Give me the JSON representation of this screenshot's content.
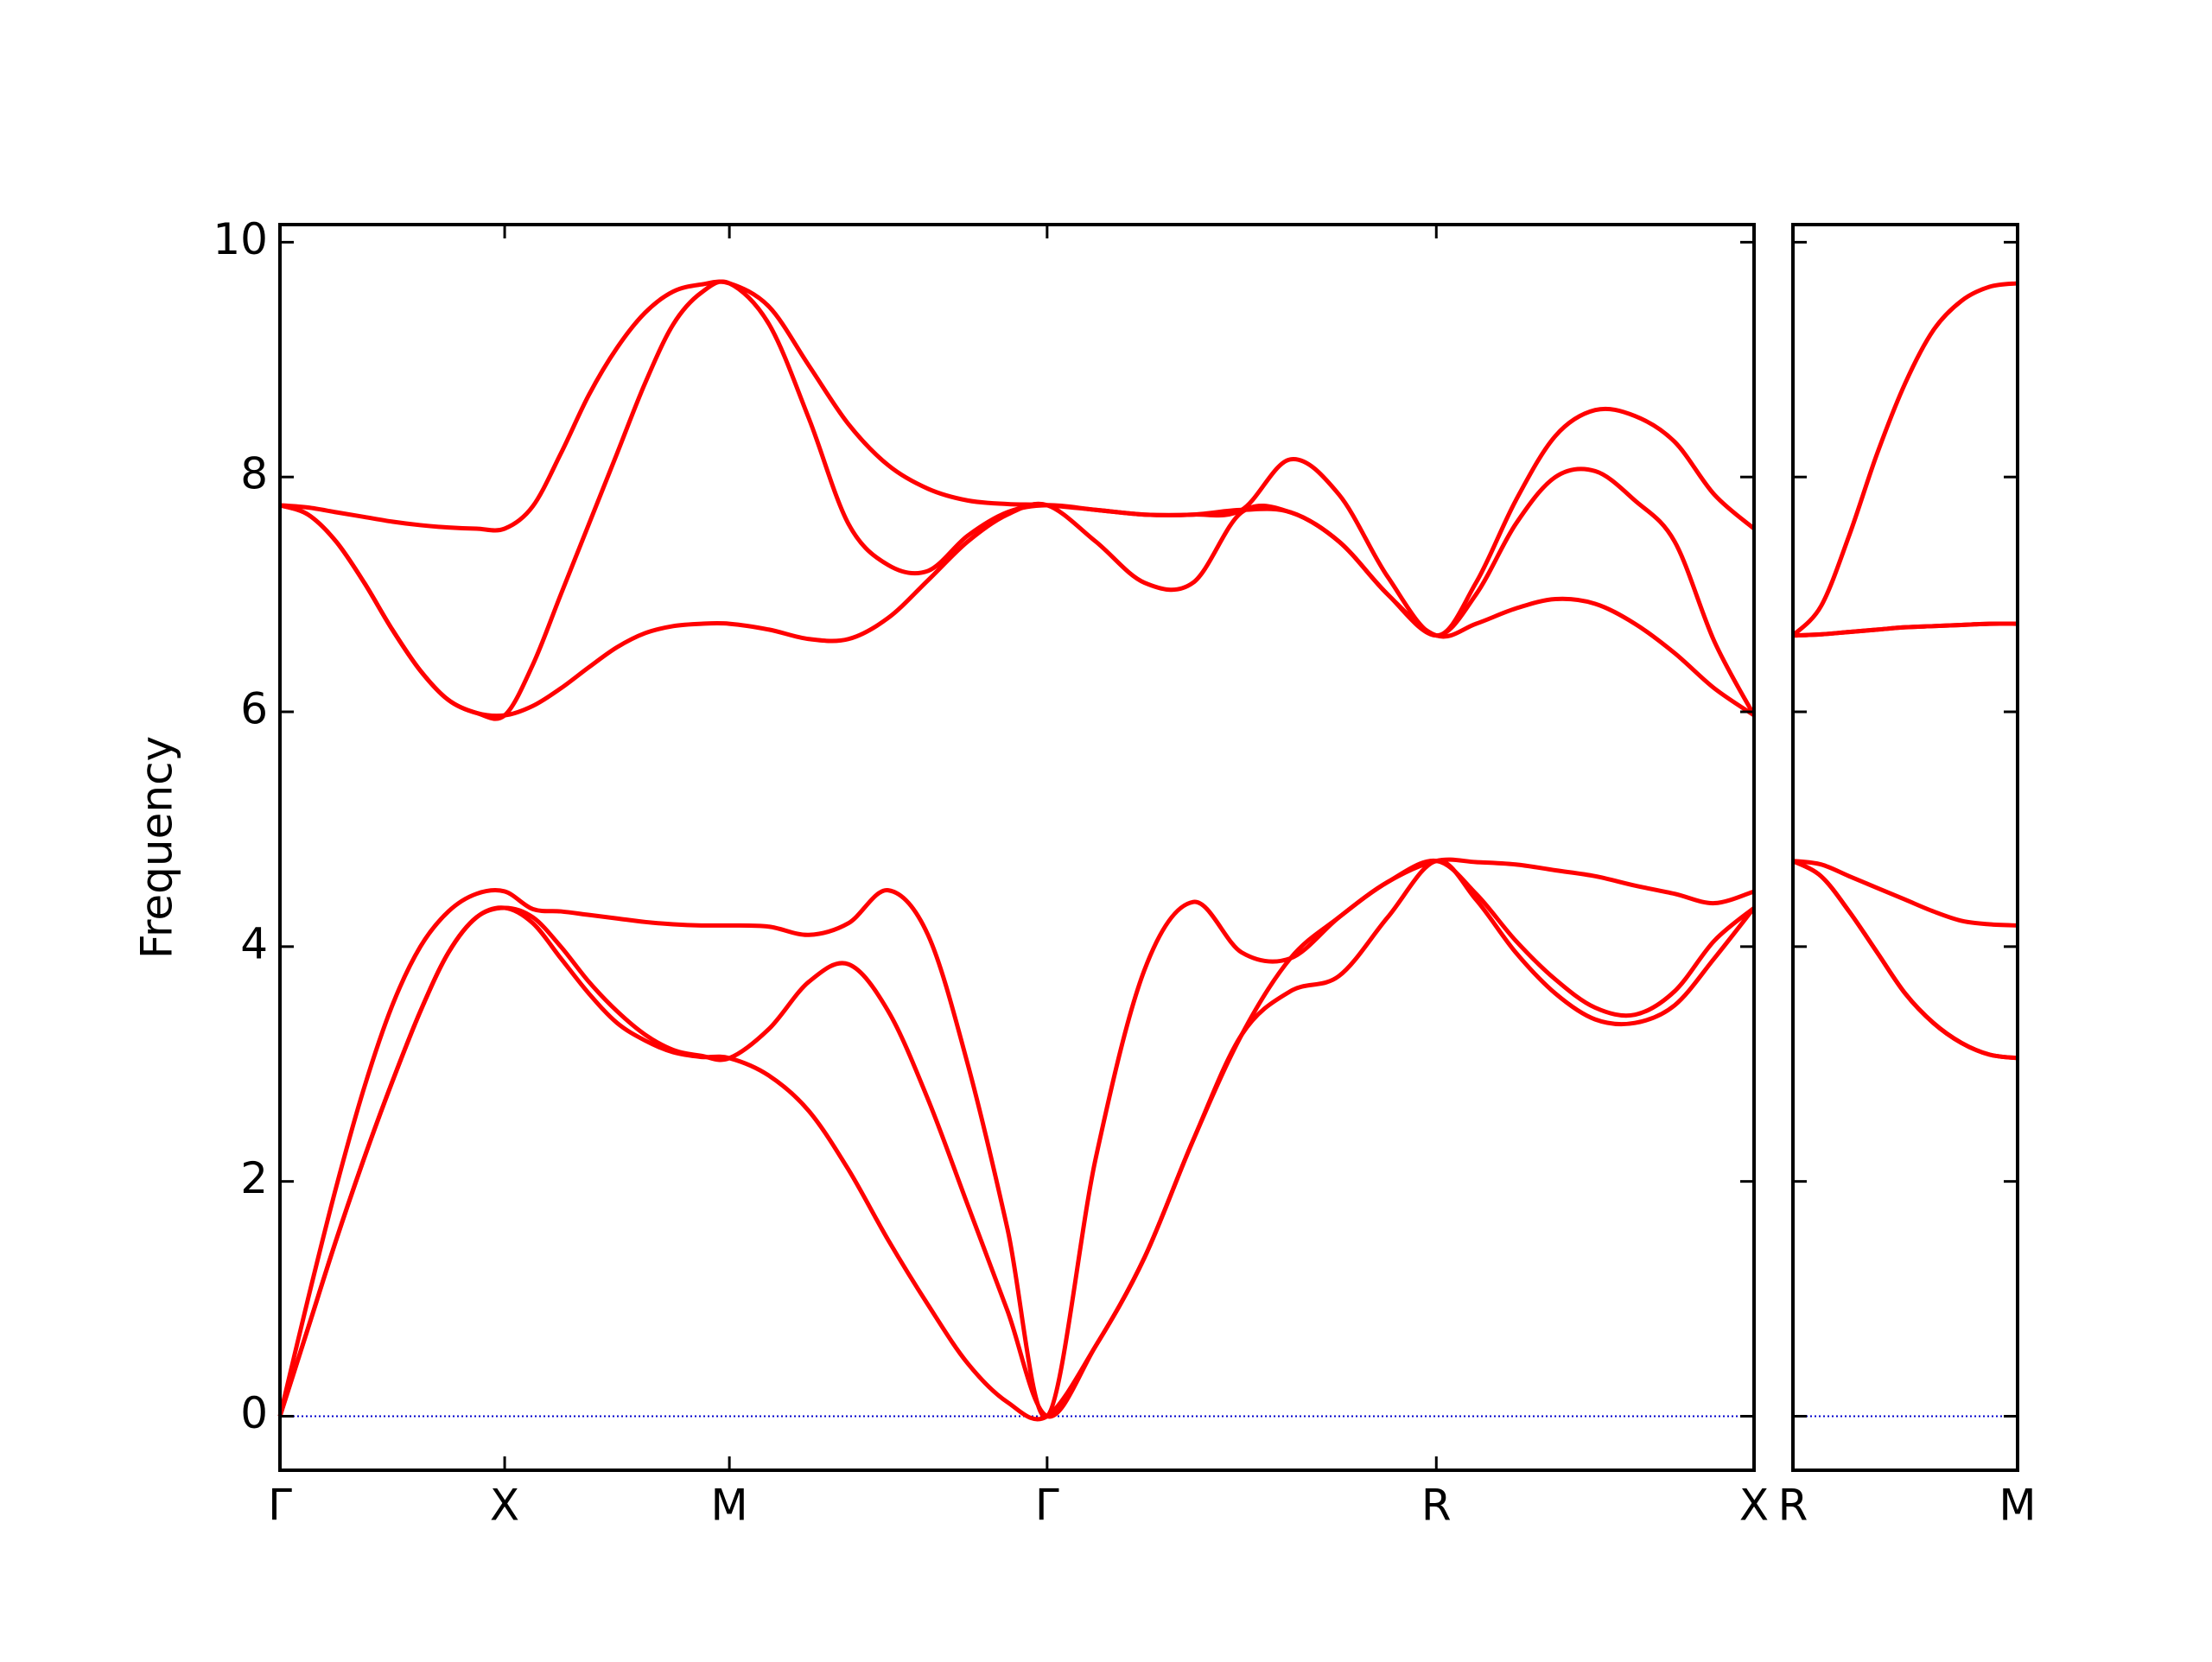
{
  "chart_data": [
    {
      "type": "line",
      "ylabel": "Frequency",
      "x": [
        0,
        0.0625,
        0.125,
        0.1875,
        0.25,
        0.3125,
        0.375,
        0.4375,
        0.5,
        0.5625,
        0.625,
        0.6875,
        0.75,
        0.8125,
        0.875,
        0.9375,
        1.0,
        1.0884,
        1.1768,
        1.2651,
        1.3535,
        1.4419,
        1.5303,
        1.6186,
        1.707,
        1.8153,
        1.9235,
        2.0318,
        2.14,
        2.2483,
        2.3565,
        2.4648,
        2.573,
        2.6614,
        2.7498,
        2.8381,
        2.9265,
        3.0149,
        3.1033,
        3.1916,
        3.28
      ],
      "xlim": [
        0,
        3.28
      ],
      "xticks": [
        {
          "value": 0,
          "label": "Γ"
        },
        {
          "value": 0.5,
          "label": "X"
        },
        {
          "value": 1.0,
          "label": "M"
        },
        {
          "value": 1.707,
          "label": "Γ"
        },
        {
          "value": 2.573,
          "label": "R"
        },
        {
          "value": 3.28,
          "label": "X"
        }
      ],
      "ylim": [
        -0.46,
        10.15
      ],
      "yticks": [
        0,
        2,
        4,
        6,
        8,
        10
      ],
      "show_ytick_labels": true,
      "hline": {
        "value": 0,
        "color": "#0000cc"
      },
      "series": [
        {
          "color": "#ff0000",
          "values": [
            0,
            0.75,
            1.5,
            2.2,
            2.85,
            3.45,
            3.95,
            4.25,
            4.33,
            4.2,
            3.9,
            3.6,
            3.35,
            3.2,
            3.1,
            3.06,
            3.05,
            2.9,
            2.6,
            2.1,
            1.5,
            0.95,
            0.45,
            0.12,
            0,
            0.6,
            1.35,
            2.35,
            3.25,
            3.62,
            3.75,
            4.25,
            4.73,
            4.4,
            3.95,
            3.6,
            3.38,
            3.35,
            3.5,
            3.9,
            4.33
          ]
        },
        {
          "color": "#ff0000",
          "values": [
            0,
            0.75,
            1.5,
            2.2,
            2.85,
            3.45,
            3.95,
            4.25,
            4.33,
            4.25,
            4.0,
            3.7,
            3.45,
            3.25,
            3.12,
            3.07,
            3.05,
            3.3,
            3.7,
            3.85,
            3.45,
            2.7,
            1.8,
            0.9,
            0,
            0.6,
            1.35,
            2.35,
            3.25,
            3.9,
            4.25,
            4.55,
            4.73,
            4.45,
            4.05,
            3.72,
            3.48,
            3.42,
            3.62,
            4.05,
            4.33
          ]
        },
        {
          "color": "#ff0000",
          "values": [
            0,
            1.0,
            1.95,
            2.8,
            3.5,
            4.0,
            4.3,
            4.45,
            4.47,
            4.32,
            4.3,
            4.27,
            4.24,
            4.21,
            4.19,
            4.18,
            4.18,
            4.17,
            4.1,
            4.2,
            4.48,
            4.1,
            3.0,
            1.6,
            0,
            2.2,
            3.8,
            4.38,
            3.95,
            3.9,
            4.25,
            4.55,
            4.73,
            4.72,
            4.7,
            4.65,
            4.6,
            4.52,
            4.45,
            4.37,
            4.47
          ]
        },
        {
          "color": "#ff0000",
          "values": [
            7.76,
            7.68,
            7.45,
            7.1,
            6.7,
            6.35,
            6.1,
            5.99,
            5.97,
            6.05,
            6.2,
            6.38,
            6.55,
            6.67,
            6.73,
            6.75,
            6.75,
            6.7,
            6.62,
            6.62,
            6.8,
            7.12,
            7.45,
            7.68,
            7.76,
            7.45,
            7.1,
            7.1,
            7.7,
            7.7,
            7.45,
            7.0,
            6.65,
            6.75,
            6.88,
            6.96,
            6.92,
            6.75,
            6.5,
            6.2,
            5.97
          ]
        },
        {
          "color": "#ff0000",
          "values": [
            7.76,
            7.68,
            7.45,
            7.1,
            6.7,
            6.35,
            6.1,
            5.99,
            5.97,
            6.4,
            7.0,
            7.6,
            8.2,
            8.8,
            9.3,
            9.57,
            9.65,
            9.3,
            8.5,
            7.6,
            7.25,
            7.2,
            7.5,
            7.7,
            7.76,
            7.72,
            7.68,
            7.68,
            7.72,
            7.7,
            7.45,
            7.0,
            6.65,
            7.0,
            7.6,
            8.0,
            8.05,
            7.8,
            7.45,
            6.6,
            5.97
          ]
        },
        {
          "color": "#ff0000",
          "values": [
            7.76,
            7.74,
            7.7,
            7.66,
            7.62,
            7.59,
            7.57,
            7.56,
            7.56,
            7.75,
            8.2,
            8.7,
            9.1,
            9.4,
            9.58,
            9.64,
            9.65,
            9.45,
            8.95,
            8.45,
            8.1,
            7.9,
            7.8,
            7.77,
            7.76,
            7.72,
            7.68,
            7.68,
            7.72,
            8.15,
            7.85,
            7.15,
            6.65,
            7.1,
            7.8,
            8.35,
            8.57,
            8.52,
            8.3,
            7.85,
            7.56
          ]
        }
      ]
    },
    {
      "type": "line",
      "x": [
        0,
        0.0625,
        0.125,
        0.1875,
        0.25,
        0.3125,
        0.375,
        0.4375,
        0.5
      ],
      "xlim": [
        0,
        0.5
      ],
      "xticks": [
        {
          "value": 0,
          "label": "R"
        },
        {
          "value": 0.5,
          "label": "M"
        }
      ],
      "ylim": [
        -0.46,
        10.15
      ],
      "yticks": [
        0,
        2,
        4,
        6,
        8,
        10
      ],
      "show_ytick_labels": false,
      "hline": {
        "value": 0,
        "color": "#0000cc"
      },
      "series": [
        {
          "color": "#ff0000",
          "values": [
            4.73,
            4.6,
            4.3,
            3.95,
            3.6,
            3.35,
            3.18,
            3.08,
            3.05
          ]
        },
        {
          "color": "#ff0000",
          "values": [
            4.73,
            4.6,
            4.3,
            3.95,
            3.6,
            3.35,
            3.18,
            3.08,
            3.05
          ]
        },
        {
          "color": "#ff0000",
          "values": [
            4.73,
            4.7,
            4.6,
            4.5,
            4.4,
            4.3,
            4.22,
            4.19,
            4.18
          ]
        },
        {
          "color": "#ff0000",
          "values": [
            6.65,
            6.66,
            6.68,
            6.7,
            6.72,
            6.73,
            6.74,
            6.75,
            6.75
          ]
        },
        {
          "color": "#ff0000",
          "values": [
            6.65,
            6.66,
            6.68,
            6.7,
            6.72,
            6.73,
            6.74,
            6.75,
            6.75
          ]
        },
        {
          "color": "#ff0000",
          "values": [
            6.65,
            6.9,
            7.5,
            8.2,
            8.8,
            9.25,
            9.5,
            9.62,
            9.65
          ]
        }
      ]
    }
  ]
}
